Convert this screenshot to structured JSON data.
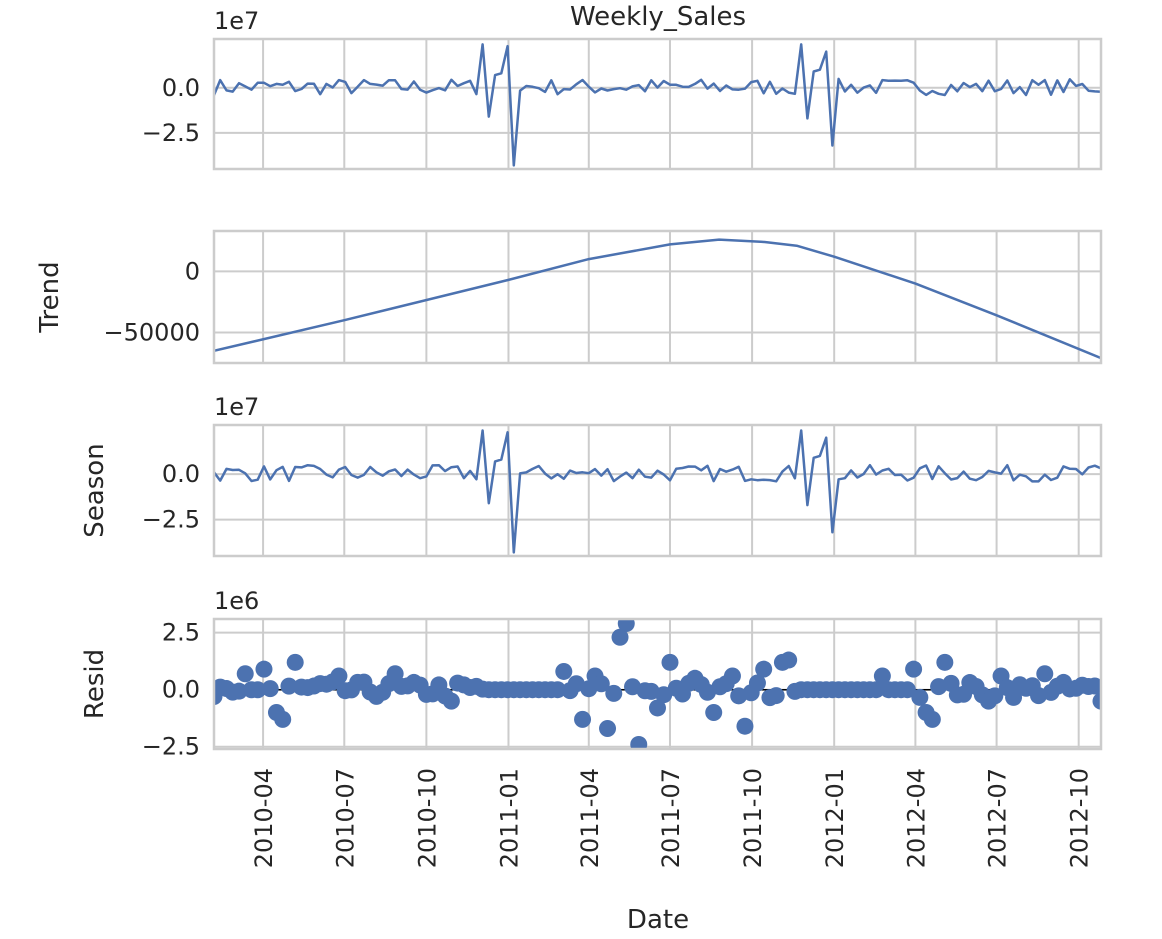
{
  "chart_data": {
    "type": "line",
    "title": "Weekly_Sales",
    "xlabel": "Date",
    "x_ticks": [
      "2010-04",
      "2010-07",
      "2010-10",
      "2011-01",
      "2011-04",
      "2011-07",
      "2011-10",
      "2012-01",
      "2012-04",
      "2012-07",
      "2012-10"
    ],
    "x_range": [
      "2010-02-05",
      "2012-10-26"
    ],
    "grid": true,
    "colors": {
      "series": "#4c72b0",
      "grid": "#cccccc",
      "frame": "#cccccc",
      "zero_line": "#000000"
    },
    "panels": [
      {
        "name": "observed",
        "ylabel": "",
        "offset_text": "1e7",
        "yticks": [
          0.0,
          -2.5
        ],
        "ytick_labels": [
          "0.0",
          "−2.5"
        ],
        "ylim": [
          -4.5,
          2.7
        ],
        "kind": "line",
        "events": [
          {
            "date": "2010-12-03",
            "value": 2.4
          },
          {
            "date": "2010-12-10",
            "value": -1.6
          },
          {
            "date": "2010-12-17",
            "value": 0.7
          },
          {
            "date": "2010-12-24",
            "value": 0.8
          },
          {
            "date": "2010-12-31",
            "value": 2.3
          },
          {
            "date": "2011-01-07",
            "value": -4.3
          },
          {
            "date": "2011-11-25",
            "value": 2.4
          },
          {
            "date": "2011-12-02",
            "value": -1.7
          },
          {
            "date": "2011-12-09",
            "value": 0.9
          },
          {
            "date": "2011-12-16",
            "value": 1.0
          },
          {
            "date": "2011-12-23",
            "value": 2.0
          },
          {
            "date": "2011-12-30",
            "value": -3.2
          }
        ]
      },
      {
        "name": "trend",
        "ylabel": "Trend",
        "offset_text": "",
        "yticks": [
          0,
          -50000
        ],
        "ytick_labels": [
          "0",
          "−50000"
        ],
        "ylim": [
          -75000,
          33000
        ],
        "kind": "line",
        "points": [
          {
            "date": "2010-02-05",
            "value": -65000
          },
          {
            "date": "2010-07-01",
            "value": -40000
          },
          {
            "date": "2011-01-01",
            "value": -7000
          },
          {
            "date": "2011-04-01",
            "value": 10000
          },
          {
            "date": "2011-07-01",
            "value": 22000
          },
          {
            "date": "2011-08-25",
            "value": 26000
          },
          {
            "date": "2011-10-15",
            "value": 24000
          },
          {
            "date": "2011-11-20",
            "value": 21000
          },
          {
            "date": "2012-01-01",
            "value": 12000
          },
          {
            "date": "2012-04-01",
            "value": -10000
          },
          {
            "date": "2012-07-01",
            "value": -36000
          },
          {
            "date": "2012-10-26",
            "value": -71000
          }
        ]
      },
      {
        "name": "seasonal",
        "ylabel": "Season",
        "offset_text": "1e7",
        "yticks": [
          0.0,
          -2.5
        ],
        "ytick_labels": [
          "0.0",
          "−2.5"
        ],
        "ylim": [
          -4.5,
          2.7
        ],
        "kind": "line",
        "events": [
          {
            "date": "2010-12-03",
            "value": 2.4
          },
          {
            "date": "2010-12-10",
            "value": -1.6
          },
          {
            "date": "2010-12-17",
            "value": 0.7
          },
          {
            "date": "2010-12-24",
            "value": 0.8
          },
          {
            "date": "2010-12-31",
            "value": 2.3
          },
          {
            "date": "2011-01-07",
            "value": -4.3
          },
          {
            "date": "2011-11-25",
            "value": 2.4
          },
          {
            "date": "2011-12-02",
            "value": -1.7
          },
          {
            "date": "2011-12-09",
            "value": 0.9
          },
          {
            "date": "2011-12-16",
            "value": 1.0
          },
          {
            "date": "2011-12-23",
            "value": 2.0
          },
          {
            "date": "2011-12-30",
            "value": -3.2
          }
        ]
      },
      {
        "name": "resid",
        "ylabel": "Resid",
        "offset_text": "1e6",
        "yticks": [
          2.5,
          0.0,
          -2.5
        ],
        "ytick_labels": [
          "2.5",
          "0.0",
          "−2.5"
        ],
        "ylim": [
          -2.6,
          3.1
        ],
        "kind": "scatter",
        "events": [
          {
            "date": "2010-02-05",
            "value": -0.3
          },
          {
            "date": "2010-03-12",
            "value": 0.7
          },
          {
            "date": "2010-04-02",
            "value": 0.9
          },
          {
            "date": "2010-04-16",
            "value": -1.0
          },
          {
            "date": "2010-04-23",
            "value": -1.3
          },
          {
            "date": "2010-05-07",
            "value": 1.2
          },
          {
            "date": "2010-06-25",
            "value": 0.6
          },
          {
            "date": "2010-08-27",
            "value": 0.7
          },
          {
            "date": "2010-10-29",
            "value": -0.5
          },
          {
            "date": "2011-03-04",
            "value": 0.8
          },
          {
            "date": "2011-03-25",
            "value": -1.3
          },
          {
            "date": "2011-04-08",
            "value": 0.6
          },
          {
            "date": "2011-04-22",
            "value": -1.7
          },
          {
            "date": "2011-05-06",
            "value": 2.3
          },
          {
            "date": "2011-05-13",
            "value": 2.9
          },
          {
            "date": "2011-05-27",
            "value": -2.4
          },
          {
            "date": "2011-06-17",
            "value": -0.8
          },
          {
            "date": "2011-07-01",
            "value": 1.2
          },
          {
            "date": "2011-07-29",
            "value": 0.5
          },
          {
            "date": "2011-08-19",
            "value": -1.0
          },
          {
            "date": "2011-09-09",
            "value": 0.6
          },
          {
            "date": "2011-09-23",
            "value": -1.6
          },
          {
            "date": "2011-10-14",
            "value": 0.9
          },
          {
            "date": "2011-11-04",
            "value": 1.2
          },
          {
            "date": "2011-11-11",
            "value": 1.3
          },
          {
            "date": "2012-02-24",
            "value": 0.6
          },
          {
            "date": "2012-03-30",
            "value": 0.9
          },
          {
            "date": "2012-04-13",
            "value": -1.0
          },
          {
            "date": "2012-04-20",
            "value": -1.3
          },
          {
            "date": "2012-05-04",
            "value": 1.2
          },
          {
            "date": "2012-06-22",
            "value": -0.5
          },
          {
            "date": "2012-07-06",
            "value": 0.6
          },
          {
            "date": "2012-08-24",
            "value": 0.7
          },
          {
            "date": "2012-10-26",
            "value": -0.5
          }
        ]
      }
    ]
  }
}
